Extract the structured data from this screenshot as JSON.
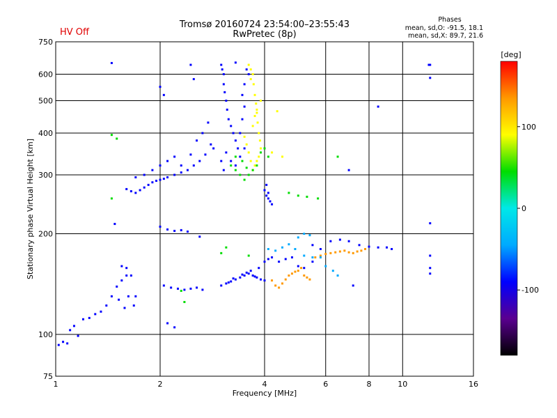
{
  "header": {
    "title_line1": "Tromsø 20160724 23:54:00–23:55:43",
    "title_line2": "RwPretec (8p)",
    "hv_status": "HV Off",
    "hv_color": "#e00000",
    "phase_heading": "Phases",
    "phase_o": "mean, sd,O: -91.5, 18.1",
    "phase_x": "mean, sd,X:  89.7, 21.6"
  },
  "chart_data": {
    "type": "scatter",
    "xlabel": "Frequency [MHz]",
    "ylabel": "Stationary phase Virtual Height [km]",
    "x_scale": "log",
    "y_scale": "log",
    "xlim": [
      1,
      16
    ],
    "ylim": [
      75,
      750
    ],
    "x_ticks": [
      1,
      2,
      4,
      6,
      8,
      10,
      16
    ],
    "x_tick_labels": [
      "1",
      "2",
      "4",
      "6",
      "8",
      "10",
      "16"
    ],
    "y_ticks": [
      75,
      100,
      200,
      300,
      400,
      500,
      600,
      750
    ],
    "y_tick_labels": [
      "75",
      "100",
      "200",
      "300",
      "400",
      "500",
      "600",
      "750"
    ],
    "grid": true,
    "colorbar": {
      "label": "[deg]",
      "range": [
        -180,
        180
      ],
      "ticks": [
        -100,
        0,
        100
      ],
      "tick_labels": [
        "-100",
        "0",
        "100"
      ],
      "colors": [
        "#000000",
        "#5a0090",
        "#0000ff",
        "#00aaff",
        "#00e8e8",
        "#00dd00",
        "#ffff00",
        "#ff9900",
        "#ff0000"
      ]
    },
    "series": [
      {
        "values": [
          [
            1.02,
            93
          ],
          [
            1.05,
            95
          ],
          [
            1.08,
            94
          ],
          [
            1.1,
            103
          ],
          [
            1.13,
            106
          ],
          [
            1.16,
            99
          ],
          [
            1.2,
            111
          ],
          [
            1.25,
            112
          ],
          [
            1.3,
            115
          ],
          [
            1.35,
            117
          ],
          [
            1.4,
            122
          ],
          [
            1.45,
            130
          ],
          [
            1.5,
            139
          ],
          [
            1.55,
            145
          ],
          [
            1.6,
            150
          ],
          [
            1.62,
            130
          ],
          [
            1.58,
            120
          ],
          [
            1.52,
            127
          ],
          [
            1.55,
            160
          ],
          [
            1.6,
            158
          ],
          [
            1.65,
            150
          ],
          [
            1.7,
            130
          ],
          [
            1.68,
            122
          ]
        ],
        "phase": -100
      },
      {
        "values": [
          [
            1.6,
            272
          ],
          [
            1.65,
            268
          ],
          [
            1.7,
            265
          ],
          [
            1.75,
            270
          ],
          [
            1.8,
            275
          ],
          [
            1.85,
            280
          ],
          [
            1.9,
            285
          ],
          [
            1.95,
            288
          ],
          [
            2.0,
            290
          ],
          [
            2.05,
            292
          ],
          [
            2.1,
            295
          ],
          [
            2.2,
            300
          ],
          [
            2.3,
            305
          ],
          [
            2.4,
            310
          ],
          [
            2.5,
            320
          ],
          [
            2.6,
            330
          ],
          [
            2.7,
            345
          ],
          [
            2.8,
            370
          ],
          [
            2.85,
            360
          ],
          [
            1.7,
            295
          ],
          [
            1.8,
            300
          ],
          [
            1.9,
            310
          ],
          [
            2.0,
            320
          ],
          [
            2.1,
            330
          ],
          [
            2.2,
            340
          ],
          [
            2.3,
            320
          ],
          [
            2.45,
            345
          ],
          [
            2.55,
            380
          ],
          [
            2.65,
            400
          ],
          [
            2.75,
            430
          ]
        ],
        "phase": -100
      },
      {
        "values": [
          [
            2.0,
            550
          ],
          [
            2.05,
            520
          ],
          [
            2.45,
            640
          ],
          [
            2.5,
            580
          ],
          [
            2.0,
            210
          ],
          [
            2.1,
            206
          ],
          [
            2.2,
            204
          ],
          [
            2.3,
            205
          ],
          [
            2.4,
            203
          ],
          [
            2.6,
            196
          ],
          [
            2.05,
            140
          ],
          [
            2.15,
            138
          ],
          [
            2.25,
            137
          ],
          [
            2.35,
            136
          ],
          [
            2.45,
            137
          ],
          [
            2.55,
            138
          ],
          [
            2.65,
            136
          ],
          [
            2.1,
            108
          ],
          [
            2.2,
            105
          ],
          [
            1.48,
            214
          ],
          [
            1.45,
            648
          ]
        ],
        "phase": -100
      },
      {
        "values": [
          [
            3.0,
            640
          ],
          [
            3.02,
            620
          ],
          [
            3.05,
            600
          ],
          [
            3.05,
            560
          ],
          [
            3.07,
            530
          ],
          [
            3.1,
            500
          ],
          [
            3.12,
            470
          ],
          [
            3.15,
            440
          ],
          [
            3.2,
            420
          ],
          [
            3.25,
            400
          ],
          [
            3.3,
            380
          ],
          [
            3.35,
            360
          ],
          [
            3.1,
            350
          ],
          [
            3.0,
            330
          ],
          [
            3.05,
            310
          ],
          [
            3.2,
            330
          ],
          [
            3.3,
            320
          ],
          [
            3.4,
            340
          ],
          [
            3.5,
            360
          ],
          [
            3.4,
            400
          ],
          [
            3.45,
            440
          ],
          [
            3.5,
            480
          ],
          [
            3.45,
            520
          ],
          [
            3.5,
            560
          ],
          [
            3.55,
            620
          ],
          [
            3.6,
            600
          ],
          [
            3.3,
            650
          ]
        ],
        "phase": -110
      },
      {
        "values": [
          [
            3.6,
            640
          ],
          [
            3.65,
            620
          ],
          [
            3.7,
            600
          ],
          [
            3.72,
            560
          ],
          [
            3.75,
            520
          ],
          [
            3.78,
            490
          ],
          [
            3.8,
            460
          ],
          [
            3.82,
            430
          ],
          [
            3.85,
            400
          ],
          [
            3.88,
            380
          ],
          [
            3.9,
            360
          ],
          [
            3.85,
            340
          ],
          [
            3.8,
            330
          ],
          [
            3.75,
            320
          ],
          [
            3.7,
            310
          ],
          [
            3.65,
            330
          ],
          [
            3.6,
            350
          ],
          [
            3.55,
            370
          ],
          [
            3.5,
            390
          ],
          [
            3.7,
            420
          ],
          [
            3.75,
            450
          ],
          [
            3.8,
            470
          ],
          [
            3.9,
            500
          ],
          [
            3.65,
            580
          ],
          [
            4.2,
            350
          ],
          [
            4.5,
            340
          ],
          [
            4.35,
            465
          ]
        ],
        "phase": 110
      },
      {
        "values": [
          [
            3.2,
            320
          ],
          [
            3.3,
            310
          ],
          [
            3.4,
            300
          ],
          [
            3.5,
            290
          ],
          [
            3.6,
            300
          ],
          [
            3.7,
            310
          ],
          [
            3.8,
            320
          ],
          [
            3.9,
            350
          ],
          [
            4.0,
            360
          ],
          [
            4.1,
            340
          ],
          [
            3.3,
            340
          ],
          [
            3.45,
            330
          ],
          [
            3.55,
            315
          ]
        ],
        "phase": 60
      },
      {
        "values": [
          [
            4.0,
            270
          ],
          [
            4.05,
            260
          ],
          [
            4.1,
            255
          ],
          [
            4.15,
            250
          ],
          [
            4.2,
            245
          ],
          [
            4.05,
            280
          ],
          [
            4.1,
            265
          ]
        ],
        "phase": -100
      },
      {
        "values": [
          [
            3.0,
            140
          ],
          [
            3.1,
            142
          ],
          [
            3.2,
            144
          ],
          [
            3.3,
            146
          ],
          [
            3.4,
            148
          ],
          [
            3.5,
            150
          ],
          [
            3.6,
            152
          ],
          [
            3.7,
            150
          ],
          [
            3.8,
            148
          ],
          [
            3.9,
            146
          ],
          [
            4.0,
            145
          ],
          [
            3.15,
            143
          ],
          [
            3.25,
            147
          ],
          [
            3.45,
            151
          ],
          [
            3.55,
            153
          ],
          [
            3.75,
            149
          ],
          [
            3.65,
            155
          ],
          [
            3.85,
            158
          ],
          [
            4.0,
            165
          ],
          [
            4.1,
            168
          ],
          [
            4.2,
            170
          ],
          [
            4.4,
            165
          ],
          [
            4.6,
            168
          ],
          [
            4.8,
            170
          ],
          [
            5.0,
            160
          ],
          [
            5.2,
            158
          ],
          [
            5.5,
            165
          ]
        ],
        "phase": -100
      },
      {
        "values": [
          [
            4.2,
            145
          ],
          [
            4.3,
            140
          ],
          [
            4.4,
            138
          ],
          [
            4.5,
            142
          ],
          [
            4.6,
            146
          ],
          [
            4.7,
            150
          ],
          [
            4.8,
            152
          ],
          [
            4.9,
            154
          ],
          [
            5.0,
            155
          ],
          [
            5.1,
            158
          ],
          [
            5.2,
            150
          ],
          [
            5.3,
            148
          ],
          [
            5.4,
            146
          ],
          [
            5.6,
            170
          ],
          [
            5.8,
            172
          ],
          [
            6.0,
            174
          ],
          [
            6.2,
            175
          ],
          [
            6.4,
            176
          ],
          [
            6.6,
            177
          ],
          [
            6.8,
            178
          ],
          [
            7.0,
            176
          ],
          [
            7.2,
            175
          ],
          [
            7.4,
            177
          ],
          [
            7.6,
            178
          ],
          [
            7.8,
            180
          ]
        ],
        "phase": 120
      },
      {
        "values": [
          [
            5.5,
            185
          ],
          [
            5.8,
            180
          ],
          [
            6.2,
            190
          ],
          [
            6.6,
            192
          ],
          [
            7.0,
            190
          ],
          [
            7.5,
            185
          ],
          [
            8.0,
            183
          ],
          [
            8.5,
            182
          ],
          [
            9.0,
            182
          ],
          [
            9.3,
            180
          ],
          [
            12.0,
            172
          ],
          [
            12.0,
            158
          ],
          [
            12.0,
            152
          ],
          [
            12.0,
            640
          ],
          [
            11.9,
            640
          ],
          [
            7.0,
            310
          ],
          [
            7.2,
            140
          ],
          [
            8.5,
            480
          ],
          [
            12.0,
            215
          ],
          [
            12.0,
            585
          ]
        ],
        "phase": -90
      },
      {
        "values": [
          [
            4.1,
            180
          ],
          [
            4.3,
            178
          ],
          [
            4.5,
            182
          ],
          [
            4.7,
            186
          ],
          [
            4.9,
            180
          ],
          [
            5.2,
            172
          ],
          [
            5.5,
            170
          ],
          [
            5.8,
            170
          ],
          [
            6.0,
            160
          ],
          [
            6.3,
            155
          ],
          [
            6.5,
            150
          ],
          [
            5.0,
            195
          ],
          [
            5.2,
            200
          ],
          [
            5.4,
            198
          ]
        ],
        "phase": -40
      },
      {
        "values": [
          [
            1.45,
            395
          ],
          [
            1.5,
            385
          ],
          [
            1.45,
            255
          ],
          [
            2.3,
            135
          ],
          [
            2.35,
            125
          ],
          [
            3.0,
            175
          ],
          [
            3.1,
            182
          ],
          [
            3.6,
            172
          ],
          [
            4.7,
            265
          ],
          [
            5.0,
            260
          ],
          [
            5.3,
            258
          ],
          [
            5.7,
            255
          ],
          [
            6.5,
            340
          ]
        ],
        "phase": 40
      }
    ]
  }
}
